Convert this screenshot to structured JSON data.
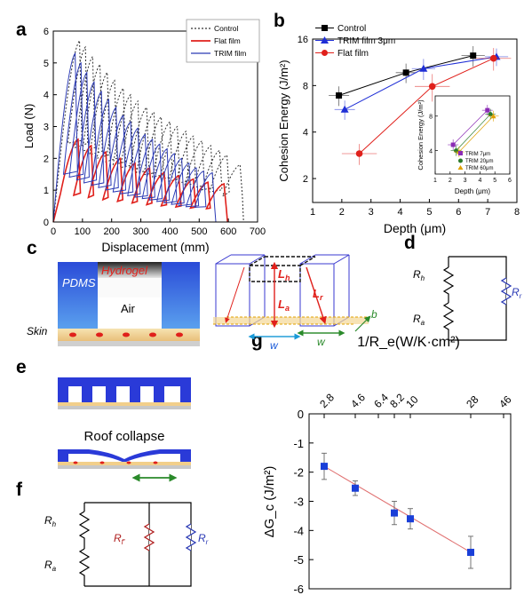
{
  "panels": {
    "a": "a",
    "b": "b",
    "c": "c",
    "d": "d",
    "e": "e",
    "f": "f",
    "g": "g"
  },
  "chart_data": [
    {
      "id": "a",
      "type": "line",
      "xlabel": "Displacement (mm)",
      "ylabel": "Load (N)",
      "xlim": [
        0,
        700
      ],
      "ylim": [
        0,
        6
      ],
      "xticks": [
        0,
        100,
        200,
        300,
        400,
        500,
        600,
        700
      ],
      "yticks": [
        0,
        1,
        2,
        3,
        4,
        5,
        6
      ],
      "legend_position": "top-right",
      "series": [
        {
          "name": "Control",
          "color": "#333333",
          "dash": "2,2",
          "peaks": [
            [
              90,
              5.7
            ],
            [
              110,
              5.5
            ],
            [
              135,
              5.2
            ],
            [
              160,
              4.95
            ],
            [
              185,
              4.7
            ],
            [
              210,
              4.45
            ],
            [
              240,
              4.2
            ],
            [
              265,
              4.0
            ],
            [
              290,
              3.8
            ],
            [
              320,
              3.6
            ],
            [
              345,
              3.45
            ],
            [
              370,
              3.3
            ],
            [
              400,
              3.15
            ],
            [
              425,
              3.0
            ],
            [
              455,
              2.85
            ],
            [
              480,
              2.7
            ],
            [
              510,
              2.55
            ],
            [
              540,
              2.4
            ],
            [
              570,
              2.25
            ],
            [
              595,
              2.1
            ],
            [
              640,
              1.8
            ]
          ]
        },
        {
          "name": "Flat film",
          "color": "#e0201b",
          "dash": "",
          "peaks": [
            [
              85,
              2.6
            ],
            [
              130,
              2.4
            ],
            [
              180,
              2.2
            ],
            [
              230,
              2.0
            ],
            [
              280,
              1.85
            ],
            [
              330,
              1.7
            ],
            [
              380,
              1.55
            ],
            [
              430,
              1.45
            ],
            [
              480,
              1.35
            ],
            [
              530,
              1.25
            ],
            [
              585,
              1.2
            ]
          ]
        },
        {
          "name": "TRIM film",
          "color": "#2b3ab5",
          "dash": "",
          "peaks": [
            [
              75,
              5.3
            ],
            [
              95,
              5.0
            ],
            [
              115,
              4.7
            ],
            [
              140,
              4.4
            ],
            [
              165,
              4.1
            ],
            [
              190,
              3.85
            ],
            [
              215,
              3.6
            ],
            [
              240,
              3.35
            ],
            [
              265,
              3.15
            ],
            [
              290,
              2.95
            ],
            [
              315,
              2.75
            ],
            [
              340,
              2.6
            ],
            [
              365,
              2.45
            ],
            [
              390,
              2.3
            ],
            [
              415,
              2.15
            ],
            [
              440,
              2.0
            ],
            [
              465,
              1.85
            ],
            [
              490,
              1.7
            ],
            [
              515,
              1.6
            ],
            [
              545,
              1.55
            ]
          ]
        }
      ]
    },
    {
      "id": "b",
      "type": "line",
      "xlabel": "Depth (μm)",
      "ylabel": "Cohesion Energy (J/m²)",
      "xlim": [
        1,
        8
      ],
      "ylim": [
        1.4,
        16
      ],
      "yscale": "log2",
      "xticks": [
        1,
        2,
        3,
        4,
        5,
        6,
        7,
        8
      ],
      "yticks": [
        2,
        4,
        8,
        16
      ],
      "legend_position": "top-left",
      "series": [
        {
          "name": "Control",
          "color": "#000000",
          "marker": "square",
          "x": [
            1.9,
            4.2,
            6.5
          ],
          "y": [
            6.9,
            9.7,
            12.5
          ],
          "xerr": [
            0.35,
            0.35,
            0.4
          ],
          "yerr": [
            1.0,
            1.4,
            1.9
          ]
        },
        {
          "name": "TRIM film 3μm",
          "color": "#1f2ed6",
          "marker": "triangle",
          "x": [
            2.1,
            4.8,
            7.3
          ],
          "y": [
            5.6,
            10.3,
            12.3
          ],
          "xerr": [
            0.35,
            0.4,
            0.4
          ],
          "yerr": [
            0.8,
            1.6,
            1.6
          ]
        },
        {
          "name": "Flat film",
          "color": "#e0201b",
          "marker": "circle",
          "x": [
            2.6,
            5.1,
            7.2
          ],
          "y": [
            2.9,
            7.9,
            12.0
          ],
          "xerr": [
            0.6,
            0.6,
            0.6
          ],
          "yerr": [
            0.45,
            1.6,
            2.0
          ]
        }
      ]
    },
    {
      "id": "b-inset",
      "type": "line",
      "xlabel": "Depth (μm)",
      "ylabel": "Cohesion Energy (J/m²)",
      "xlim": [
        1,
        6
      ],
      "ylim": [
        2.5,
        12
      ],
      "yscale": "log2",
      "xticks": [
        1,
        2,
        3,
        4,
        5,
        6
      ],
      "yticks": [
        4,
        8
      ],
      "legend_position": "bottom-right",
      "series": [
        {
          "name": "TRIM 7μm",
          "color": "#8b2bb5",
          "marker": "square",
          "x": [
            2.2,
            4.5
          ],
          "y": [
            4.5,
            9.0
          ]
        },
        {
          "name": "TRIM 20μm",
          "color": "#2a7a2a",
          "marker": "circle",
          "x": [
            2.4,
            4.7
          ],
          "y": [
            4.0,
            8.3
          ]
        },
        {
          "name": "TRIM 60μm",
          "color": "#e0a000",
          "marker": "triangle",
          "x": [
            2.6,
            4.9
          ],
          "y": [
            3.9,
            8.0
          ]
        }
      ]
    },
    {
      "id": "g",
      "type": "scatter",
      "xlabel": "",
      "ylabel": "ΔG_c (J/m²)",
      "top_axis_label": "1/R_e(W/K·cm²)",
      "top_ticks": [
        "2.8",
        "4.6",
        "6.4",
        "8.2",
        "10",
        "28",
        "46"
      ],
      "ylim": [
        -6,
        0
      ],
      "yticks": [
        "0",
        "-1",
        "-2",
        "-3",
        "-4",
        "-5",
        "-6"
      ],
      "points": [
        {
          "x": "2.8",
          "y": -1.8,
          "err": 0.45
        },
        {
          "x": "4.6",
          "y": -2.55,
          "err": 0.25
        },
        {
          "x": "8.2",
          "y": -3.4,
          "err": 0.4
        },
        {
          "x": "10",
          "y": -3.6,
          "err": 0.35
        },
        {
          "x": "28",
          "y": -4.75,
          "err": 0.55
        }
      ],
      "fit_color": "#e07070",
      "marker_color": "#1a3fd8"
    }
  ],
  "diagrams": {
    "c_left": {
      "pdms": "PDMS",
      "hydrogel": "Hydrogel",
      "air": "Air",
      "skin": "Skin"
    },
    "c_right": {
      "lh": "L",
      "lh_sub": "h",
      "lr": "L",
      "lr_sub": "r",
      "la": "L",
      "la_sub": "a",
      "w1": "w",
      "w2": "w",
      "b": "b"
    },
    "d": {
      "rh": "R",
      "rh_sub": "h",
      "ra": "R",
      "ra_sub": "a",
      "rr": "R",
      "rr_sub": "r"
    },
    "e": {
      "caption": "Roof collapse"
    },
    "f": {
      "rh": "R",
      "rh_sub": "h",
      "ra": "R",
      "ra_sub": "a",
      "rf": "R",
      "rf_sub": "f'",
      "rr": "R",
      "rr_sub": "r"
    }
  }
}
